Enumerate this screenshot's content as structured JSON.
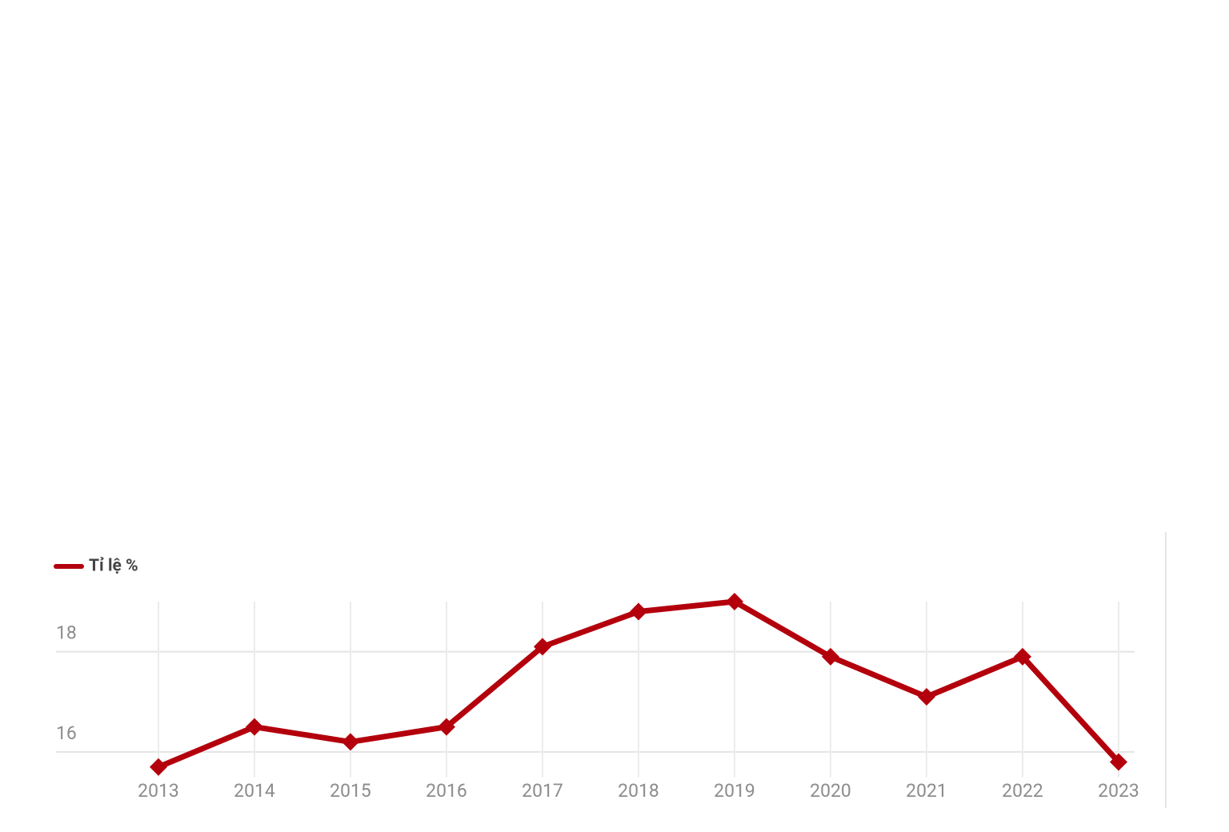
{
  "chart_data": {
    "type": "line",
    "categories": [
      "2013",
      "2014",
      "2015",
      "2016",
      "2017",
      "2018",
      "2019",
      "2020",
      "2021",
      "2022",
      "2023"
    ],
    "series": [
      {
        "name": "Tỉ lệ %",
        "color": "#b3000c",
        "values": [
          15.7,
          16.5,
          16.2,
          16.5,
          18.1,
          18.8,
          19.0,
          17.9,
          17.1,
          17.9,
          15.8
        ]
      }
    ],
    "ylim": [
      15.5,
      19.0
    ],
    "yticks": [
      16,
      18
    ],
    "grid": true,
    "legend": "top-left"
  }
}
